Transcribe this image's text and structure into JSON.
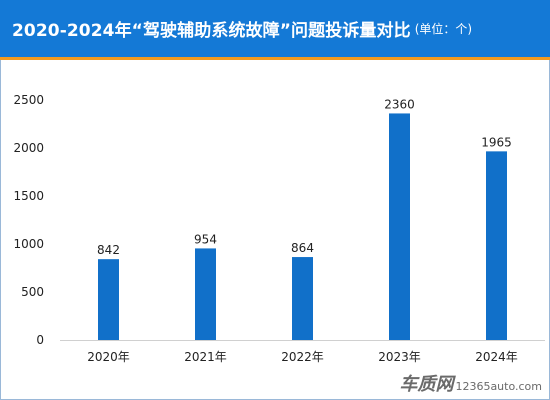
{
  "title": {
    "main": "2020-2024年“驾驶辅助系统故障”问题投诉量对比",
    "unit": "(单位：个)"
  },
  "watermark": {
    "name": "车质网",
    "url": "12365auto.com"
  },
  "colors": {
    "header": "#1479d6",
    "accent": "#f39a1e",
    "bar": "#1170c9"
  },
  "chart_data": {
    "type": "bar",
    "categories": [
      "2020年",
      "2021年",
      "2022年",
      "2023年",
      "2024年"
    ],
    "values": [
      842,
      954,
      864,
      2360,
      1965
    ],
    "ylim": [
      0,
      2500
    ],
    "yticks": [
      0,
      500,
      1000,
      1500,
      2000,
      2500
    ],
    "grid": false,
    "legend": "none"
  }
}
